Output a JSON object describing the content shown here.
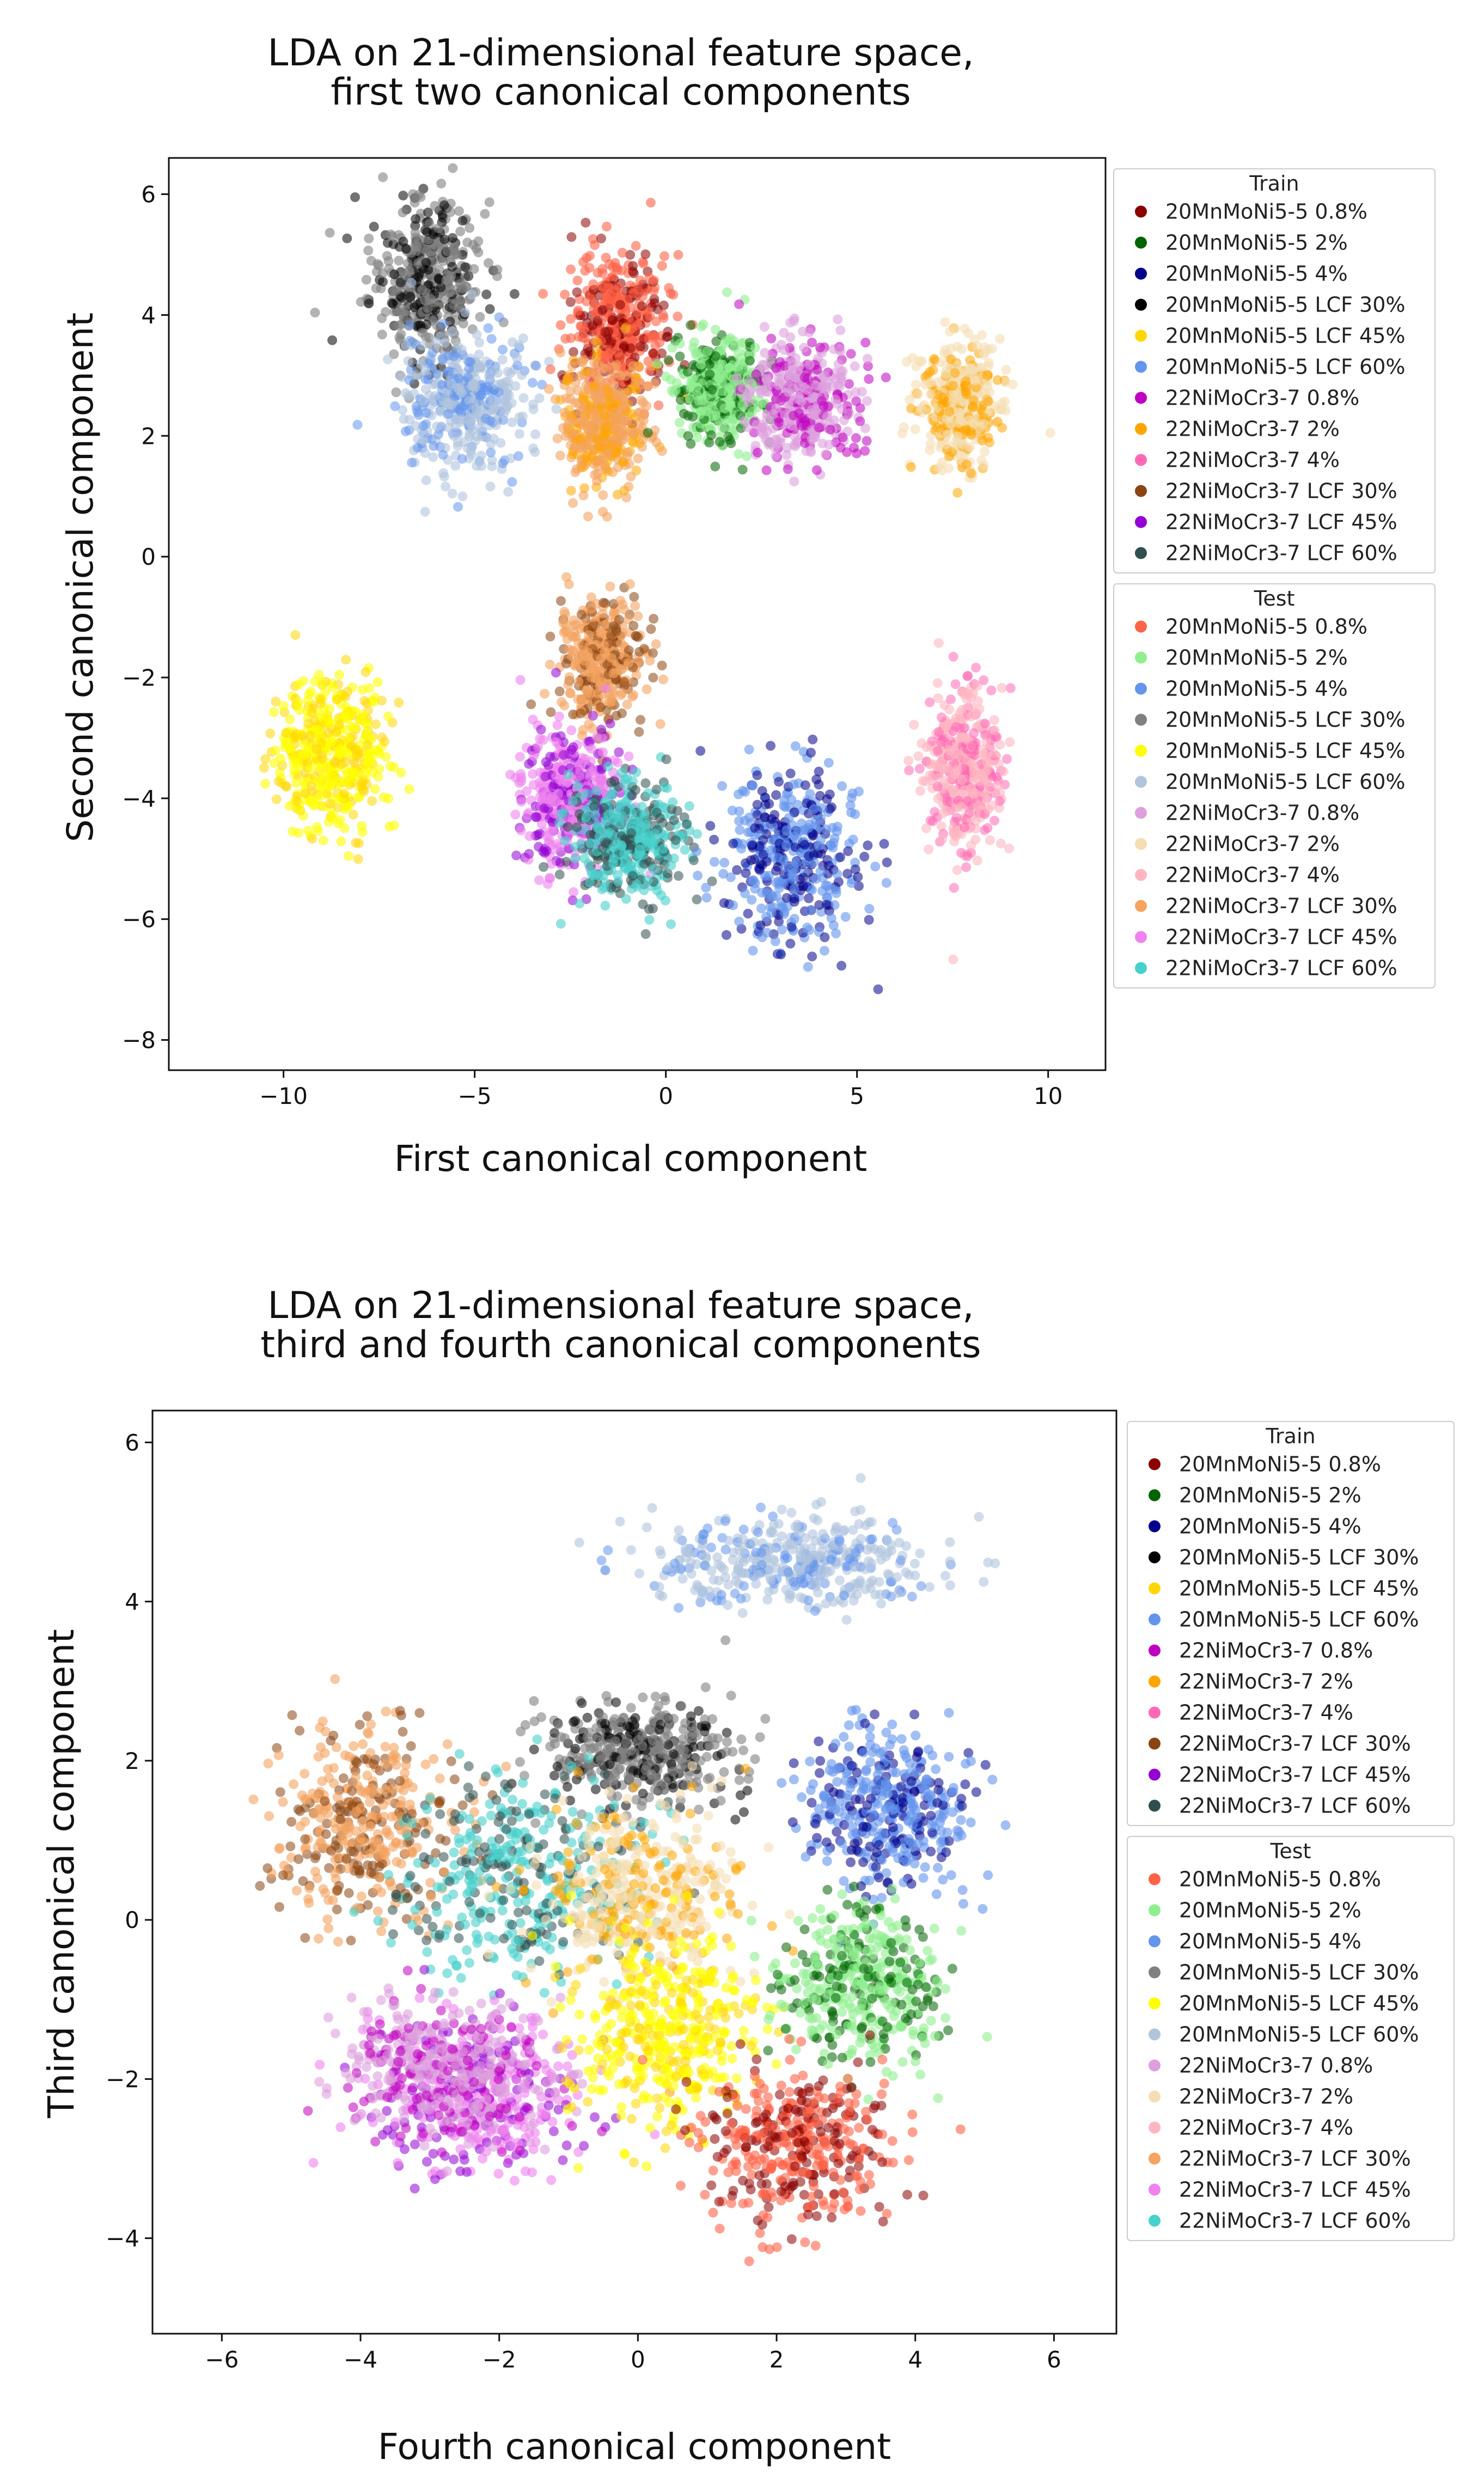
{
  "chart_data": [
    {
      "type": "scatter",
      "title": [
        "LDA on 21-dimensional feature space,",
        "first two canonical components"
      ],
      "xlabel": "First canonical component",
      "ylabel": "Second canonical component",
      "xlim": [
        -13,
        11.5
      ],
      "ylim": [
        -8.5,
        6.6
      ],
      "xticks": [
        -10,
        -5,
        0,
        5,
        10
      ],
      "yticks": [
        -8,
        -6,
        -4,
        -2,
        0,
        2,
        4,
        6
      ],
      "legend_position": "outside-right",
      "legend_groups": [
        {
          "title": "Train",
          "entries": [
            {
              "label": "20MnMoNi5-5 0.8%",
              "color": "#8b0000"
            },
            {
              "label": "20MnMoNi5-5 2%",
              "color": "#006400"
            },
            {
              "label": "20MnMoNi5-5 4%",
              "color": "#00008b"
            },
            {
              "label": "20MnMoNi5-5 LCF 30%",
              "color": "#000000"
            },
            {
              "label": "20MnMoNi5-5 LCF 45%",
              "color": "#ffd700"
            },
            {
              "label": "20MnMoNi5-5 LCF 60%",
              "color": "#6495ed"
            },
            {
              "label": "22NiMoCr3-7 0.8%",
              "color": "#c000c0"
            },
            {
              "label": "22NiMoCr3-7 2%",
              "color": "#ffa500"
            },
            {
              "label": "22NiMoCr3-7 4%",
              "color": "#ff69b4"
            },
            {
              "label": "22NiMoCr3-7 LCF 30%",
              "color": "#8b4513"
            },
            {
              "label": "22NiMoCr3-7 LCF 45%",
              "color": "#9400d3"
            },
            {
              "label": "22NiMoCr3-7 LCF 60%",
              "color": "#2f4f4f"
            }
          ]
        },
        {
          "title": "Test",
          "entries": [
            {
              "label": "20MnMoNi5-5 0.8%",
              "color": "#ff6347"
            },
            {
              "label": "20MnMoNi5-5 2%",
              "color": "#90ee90"
            },
            {
              "label": "20MnMoNi5-5 4%",
              "color": "#6495ed"
            },
            {
              "label": "20MnMoNi5-5 LCF 30%",
              "color": "#808080"
            },
            {
              "label": "20MnMoNi5-5 LCF 45%",
              "color": "#ffff00"
            },
            {
              "label": "20MnMoNi5-5 LCF 60%",
              "color": "#b0c4de"
            },
            {
              "label": "22NiMoCr3-7 0.8%",
              "color": "#dda0dd"
            },
            {
              "label": "22NiMoCr3-7 2%",
              "color": "#f5deb3"
            },
            {
              "label": "22NiMoCr3-7 4%",
              "color": "#ffb6c1"
            },
            {
              "label": "22NiMoCr3-7 LCF 30%",
              "color": "#f4a460"
            },
            {
              "label": "22NiMoCr3-7 LCF 45%",
              "color": "#ee82ee"
            },
            {
              "label": "22NiMoCr3-7 LCF 60%",
              "color": "#48d1cc"
            }
          ]
        }
      ],
      "clusters": [
        {
          "name": "20MnMoNi5-5 LCF 30%",
          "edge": "#000000",
          "fill": "#808080",
          "cx": -6.3,
          "cy": 4.6,
          "sx": 1.3,
          "sy": 1.2
        },
        {
          "name": "20MnMoNi5-5 LCF 60%",
          "edge": "#6495ed",
          "fill": "#b0c4de",
          "cx": -5.3,
          "cy": 2.6,
          "sx": 1.6,
          "sy": 1.0
        },
        {
          "name": "20MnMoNi5-5 0.8%",
          "edge": "#8b0000",
          "fill": "#ff6347",
          "cx": -1.2,
          "cy": 3.8,
          "sx": 1.1,
          "sy": 1.1
        },
        {
          "name": "22NiMoCr3-7 2%",
          "edge": "#ffa500",
          "fill": "#f4a460",
          "cx": -1.6,
          "cy": 2.2,
          "sx": 1.0,
          "sy": 1.0
        },
        {
          "name": "20MnMoNi5-5 2%",
          "edge": "#006400",
          "fill": "#90ee90",
          "cx": 1.4,
          "cy": 2.8,
          "sx": 1.0,
          "sy": 0.8
        },
        {
          "name": "22NiMoCr3-7 0.8%",
          "edge": "#c000c0",
          "fill": "#dda0dd",
          "cx": 3.6,
          "cy": 2.6,
          "sx": 1.3,
          "sy": 0.9
        },
        {
          "name": "22NiMoCr3-7 2%",
          "edge": "#ffa500",
          "fill": "#f5deb3",
          "cx": 7.7,
          "cy": 2.5,
          "sx": 1.0,
          "sy": 0.9
        },
        {
          "name": "20MnMoNi5-5 LCF 45%",
          "edge": "#ffd700",
          "fill": "#ffff00",
          "cx": -8.8,
          "cy": -3.3,
          "sx": 1.3,
          "sy": 1.2
        },
        {
          "name": "22NiMoCr3-7 LCF 30%",
          "edge": "#8b4513",
          "fill": "#f4a460",
          "cx": -1.7,
          "cy": -1.7,
          "sx": 1.0,
          "sy": 0.9
        },
        {
          "name": "22NiMoCr3-7 LCF 45%",
          "edge": "#9400d3",
          "fill": "#ee82ee",
          "cx": -2.5,
          "cy": -4.0,
          "sx": 1.2,
          "sy": 1.0
        },
        {
          "name": "22NiMoCr3-7 LCF 60%",
          "edge": "#2f4f4f",
          "fill": "#48d1cc",
          "cx": -1.0,
          "cy": -4.7,
          "sx": 1.4,
          "sy": 0.9
        },
        {
          "name": "20MnMoNi5-5 4%",
          "edge": "#00008b",
          "fill": "#6495ed",
          "cx": 3.3,
          "cy": -5.0,
          "sx": 1.6,
          "sy": 1.3
        },
        {
          "name": "22NiMoCr3-7 4%",
          "edge": "#ff69b4",
          "fill": "#ffb6c1",
          "cx": 7.8,
          "cy": -3.5,
          "sx": 0.9,
          "sy": 1.2
        }
      ]
    },
    {
      "type": "scatter",
      "title": [
        "LDA on 21-dimensional feature space,",
        "third and fourth canonical components"
      ],
      "xlabel": "Fourth canonical component",
      "ylabel": "Third canonical component",
      "xlim": [
        -7.0,
        6.9
      ],
      "ylim": [
        -5.2,
        6.4
      ],
      "xticks": [
        -6,
        -4,
        -2,
        0,
        2,
        4,
        6
      ],
      "yticks": [
        -4,
        -2,
        0,
        2,
        4,
        6
      ],
      "legend_position": "outside-right",
      "legend_groups": [
        {
          "title": "Train",
          "entries": [
            {
              "label": "20MnMoNi5-5 0.8%",
              "color": "#8b0000"
            },
            {
              "label": "20MnMoNi5-5 2%",
              "color": "#006400"
            },
            {
              "label": "20MnMoNi5-5 4%",
              "color": "#00008b"
            },
            {
              "label": "20MnMoNi5-5 LCF 30%",
              "color": "#000000"
            },
            {
              "label": "20MnMoNi5-5 LCF 45%",
              "color": "#ffd700"
            },
            {
              "label": "20MnMoNi5-5 LCF 60%",
              "color": "#6495ed"
            },
            {
              "label": "22NiMoCr3-7 0.8%",
              "color": "#c000c0"
            },
            {
              "label": "22NiMoCr3-7 2%",
              "color": "#ffa500"
            },
            {
              "label": "22NiMoCr3-7 4%",
              "color": "#ff69b4"
            },
            {
              "label": "22NiMoCr3-7 LCF 30%",
              "color": "#8b4513"
            },
            {
              "label": "22NiMoCr3-7 LCF 45%",
              "color": "#9400d3"
            },
            {
              "label": "22NiMoCr3-7 LCF 60%",
              "color": "#2f4f4f"
            }
          ]
        },
        {
          "title": "Test",
          "entries": [
            {
              "label": "20MnMoNi5-5 0.8%",
              "color": "#ff6347"
            },
            {
              "label": "20MnMoNi5-5 2%",
              "color": "#90ee90"
            },
            {
              "label": "20MnMoNi5-5 4%",
              "color": "#6495ed"
            },
            {
              "label": "20MnMoNi5-5 LCF 30%",
              "color": "#808080"
            },
            {
              "label": "20MnMoNi5-5 LCF 45%",
              "color": "#ffff00"
            },
            {
              "label": "20MnMoNi5-5 LCF 60%",
              "color": "#b0c4de"
            },
            {
              "label": "22NiMoCr3-7 0.8%",
              "color": "#dda0dd"
            },
            {
              "label": "22NiMoCr3-7 2%",
              "color": "#f5deb3"
            },
            {
              "label": "22NiMoCr3-7 4%",
              "color": "#ffb6c1"
            },
            {
              "label": "22NiMoCr3-7 LCF 30%",
              "color": "#f4a460"
            },
            {
              "label": "22NiMoCr3-7 LCF 45%",
              "color": "#ee82ee"
            },
            {
              "label": "22NiMoCr3-7 LCF 60%",
              "color": "#48d1cc"
            }
          ]
        }
      ],
      "clusters": [
        {
          "name": "20MnMoNi5-5 LCF 60%",
          "edge": "#6495ed",
          "fill": "#b0c4de",
          "cx": 2.3,
          "cy": 4.5,
          "sx": 1.9,
          "sy": 0.5
        },
        {
          "name": "20MnMoNi5-5 4%",
          "edge": "#00008b",
          "fill": "#6495ed",
          "cx": 3.6,
          "cy": 1.4,
          "sx": 1.1,
          "sy": 0.9
        },
        {
          "name": "22NiMoCr3-7 LCF 30%",
          "edge": "#8b4513",
          "fill": "#f4a460",
          "cx": -3.9,
          "cy": 1.2,
          "sx": 1.1,
          "sy": 1.1
        },
        {
          "name": "20MnMoNi5-5 LCF 30%",
          "edge": "#000000",
          "fill": "#808080",
          "cx": 0.0,
          "cy": 2.1,
          "sx": 1.2,
          "sy": 0.6
        },
        {
          "name": "22NiMoCr3-7 LCF 60%",
          "edge": "#2f4f4f",
          "fill": "#48d1cc",
          "cx": -1.7,
          "cy": 0.5,
          "sx": 1.6,
          "sy": 1.1
        },
        {
          "name": "22NiMoCr3-7 2%",
          "edge": "#ffa500",
          "fill": "#f5deb3",
          "cx": 0.0,
          "cy": 0.3,
          "sx": 1.4,
          "sy": 1.0
        },
        {
          "name": "22NiMoCr3-7 LCF 45%",
          "edge": "#9400d3",
          "fill": "#ee82ee",
          "cx": -2.3,
          "cy": -2.2,
          "sx": 1.4,
          "sy": 0.9
        },
        {
          "name": "22NiMoCr3-7 0.8%",
          "edge": "#c000c0",
          "fill": "#dda0dd",
          "cx": -2.8,
          "cy": -1.9,
          "sx": 1.3,
          "sy": 0.8
        },
        {
          "name": "20MnMoNi5-5 LCF 45%",
          "edge": "#ffd700",
          "fill": "#ffff00",
          "cx": 0.4,
          "cy": -1.4,
          "sx": 1.2,
          "sy": 1.1
        },
        {
          "name": "20MnMoNi5-5 2%",
          "edge": "#006400",
          "fill": "#90ee90",
          "cx": 3.2,
          "cy": -0.8,
          "sx": 1.1,
          "sy": 0.9
        },
        {
          "name": "20MnMoNi5-5 0.8%",
          "edge": "#8b0000",
          "fill": "#ff6347",
          "cx": 2.3,
          "cy": -2.8,
          "sx": 1.2,
          "sy": 0.9
        }
      ]
    }
  ]
}
